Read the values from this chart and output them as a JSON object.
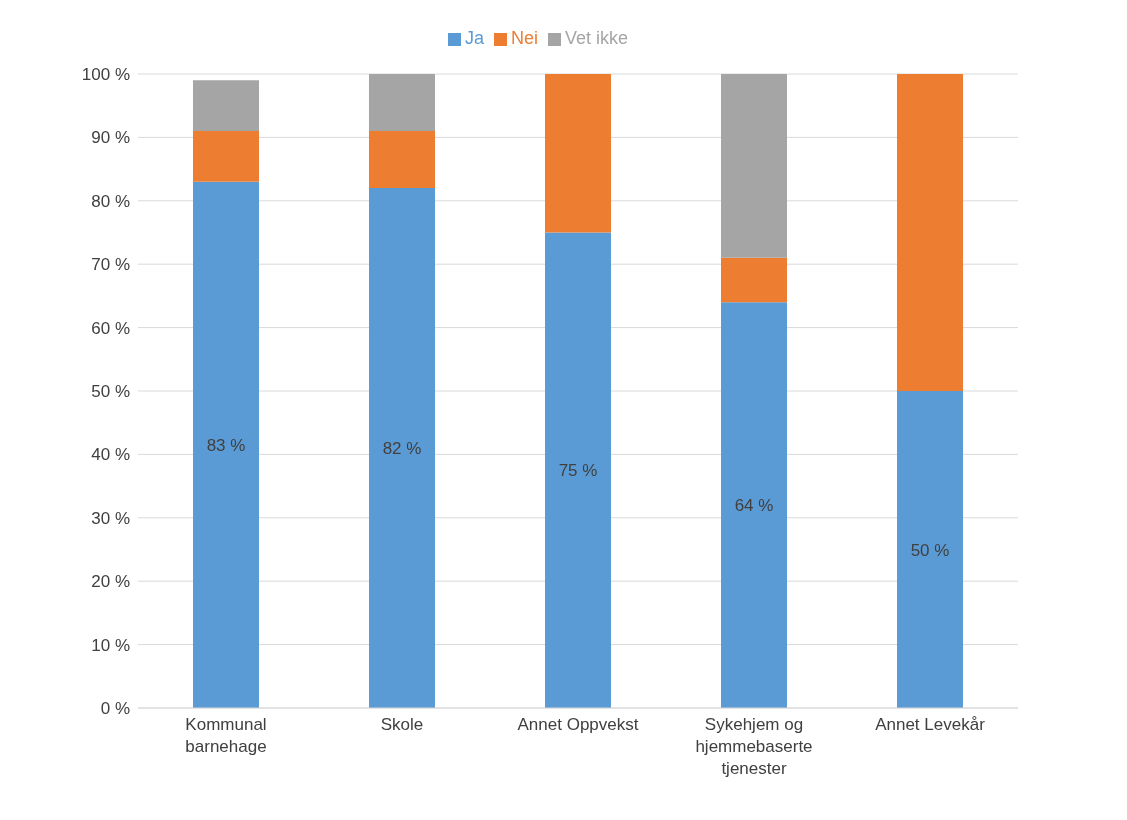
{
  "chart_data": {
    "type": "bar",
    "stacked": true,
    "categories": [
      "Kommunal barnehage",
      "Skole",
      "Annet Oppvekst",
      "Sykehjem og hjemmebaserte tjenester",
      "Annet Levekår"
    ],
    "series": [
      {
        "name": "Ja",
        "color": "#5b9bd5",
        "values": [
          83,
          82,
          75,
          64,
          50
        ],
        "value_labels": [
          "83 %",
          "82 %",
          "75 %",
          "64 %",
          "50 %"
        ]
      },
      {
        "name": "Nei",
        "color": "#ed7d31",
        "values": [
          8,
          9,
          25,
          7,
          50
        ]
      },
      {
        "name": "Vet ikke",
        "color": "#a5a5a5",
        "values": [
          8,
          9,
          0,
          29,
          0
        ]
      }
    ],
    "ylim": [
      0,
      100
    ],
    "yticks": [
      {
        "value": 0,
        "label": "0 %"
      },
      {
        "value": 10,
        "label": "10 %"
      },
      {
        "value": 20,
        "label": "20 %"
      },
      {
        "value": 30,
        "label": "30 %"
      },
      {
        "value": 40,
        "label": "40 %"
      },
      {
        "value": 50,
        "label": "50 %"
      },
      {
        "value": 60,
        "label": "60 %"
      },
      {
        "value": 70,
        "label": "70 %"
      },
      {
        "value": 80,
        "label": "80 %"
      },
      {
        "value": 90,
        "label": "90 %"
      },
      {
        "value": 100,
        "label": "100 %"
      }
    ],
    "grid": "y",
    "legend": "top"
  }
}
